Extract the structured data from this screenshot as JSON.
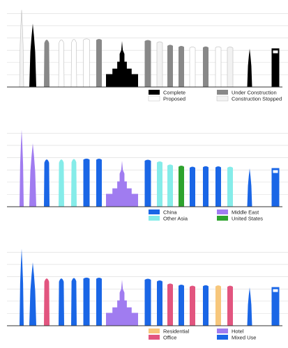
{
  "colors": {
    "complete": "#000000",
    "under_construction": "#888888",
    "proposed": "#ffffff",
    "construction_stopped": "#f2f2f2",
    "china": "#1a66e6",
    "other_asia": "#85ece9",
    "middle_east": "#a07cf0",
    "united_states": "#2ea32e",
    "residential": "#f7c77c",
    "office": "#e2557f",
    "hotel": "#a07cf0",
    "mixed_use": "#1a66e6",
    "grid": "#d9d9d9",
    "axis": "#333333"
  },
  "chart_data": [
    {
      "type": "bar",
      "title": "",
      "grouping": "status",
      "legend_placement": "bottom-right",
      "grid": true,
      "legend": [
        {
          "key": "complete",
          "label": "Complete"
        },
        {
          "key": "under_construction",
          "label": "Under Construction"
        },
        {
          "key": "proposed",
          "label": "Proposed"
        },
        {
          "key": "construction_stopped",
          "label": "Construction Stopped"
        }
      ],
      "buildings": [
        {
          "rank": 1,
          "height": 1007,
          "category": "construction_stopped",
          "shape": "spire"
        },
        {
          "rank": 2,
          "height": 828,
          "category": "complete",
          "shape": "spire"
        },
        {
          "rank": 3,
          "height": 640,
          "category": "under_construction",
          "shape": "taper"
        },
        {
          "rank": 4,
          "height": 640,
          "category": "proposed",
          "shape": "taper"
        },
        {
          "rank": 5,
          "height": 646,
          "category": "proposed",
          "shape": "taper"
        },
        {
          "rank": 6,
          "height": 634,
          "category": "proposed",
          "shape": "slab"
        },
        {
          "rank": 7,
          "height": 632,
          "category": "under_construction",
          "shape": "slab"
        },
        {
          "rank": 8,
          "height": 601,
          "category": "complete",
          "shape": "clock"
        },
        {
          "rank": 9,
          "height": 619,
          "category": "under_construction",
          "shape": "slab"
        },
        {
          "rank": 10,
          "height": 597,
          "category": "construction_stopped",
          "shape": "slab"
        },
        {
          "rank": 11,
          "height": 556,
          "category": "under_construction",
          "shape": "slab"
        },
        {
          "rank": 12,
          "height": 541,
          "category": "under_construction",
          "shape": "slab"
        },
        {
          "rank": 13,
          "height": 528,
          "category": "proposed",
          "shape": "slab"
        },
        {
          "rank": 14,
          "height": 535,
          "category": "under_construction",
          "shape": "slab"
        },
        {
          "rank": 15,
          "height": 532,
          "category": "proposed",
          "shape": "slab"
        },
        {
          "rank": 16,
          "height": 528,
          "category": "construction_stopped",
          "shape": "slab"
        },
        {
          "rank": 17,
          "height": 500,
          "category": "complete",
          "shape": "spire"
        },
        {
          "rank": 18,
          "height": 505,
          "category": "complete",
          "shape": "hole"
        }
      ]
    },
    {
      "type": "bar",
      "title": "",
      "grouping": "region",
      "legend_placement": "bottom-right",
      "grid": true,
      "legend": [
        {
          "key": "china",
          "label": "China"
        },
        {
          "key": "middle_east",
          "label": "Middle East"
        },
        {
          "key": "other_asia",
          "label": "Other Asia"
        },
        {
          "key": "united_states",
          "label": "United States"
        }
      ],
      "buildings": [
        {
          "rank": 1,
          "height": 1007,
          "category": "middle_east",
          "shape": "spire"
        },
        {
          "rank": 2,
          "height": 828,
          "category": "middle_east",
          "shape": "spire"
        },
        {
          "rank": 3,
          "height": 640,
          "category": "china",
          "shape": "taper"
        },
        {
          "rank": 4,
          "height": 640,
          "category": "other_asia",
          "shape": "taper"
        },
        {
          "rank": 5,
          "height": 646,
          "category": "other_asia",
          "shape": "taper"
        },
        {
          "rank": 6,
          "height": 634,
          "category": "china",
          "shape": "slab"
        },
        {
          "rank": 7,
          "height": 632,
          "category": "china",
          "shape": "slab"
        },
        {
          "rank": 8,
          "height": 601,
          "category": "middle_east",
          "shape": "clock"
        },
        {
          "rank": 9,
          "height": 619,
          "category": "china",
          "shape": "slab"
        },
        {
          "rank": 10,
          "height": 597,
          "category": "other_asia",
          "shape": "slab"
        },
        {
          "rank": 11,
          "height": 556,
          "category": "other_asia",
          "shape": "slab"
        },
        {
          "rank": 12,
          "height": 541,
          "category": "united_states",
          "shape": "slab"
        },
        {
          "rank": 13,
          "height": 528,
          "category": "china",
          "shape": "slab"
        },
        {
          "rank": 14,
          "height": 535,
          "category": "china",
          "shape": "slab"
        },
        {
          "rank": 15,
          "height": 532,
          "category": "china",
          "shape": "slab"
        },
        {
          "rank": 16,
          "height": 528,
          "category": "other_asia",
          "shape": "slab"
        },
        {
          "rank": 17,
          "height": 500,
          "category": "china",
          "shape": "spire"
        },
        {
          "rank": 18,
          "height": 505,
          "category": "china",
          "shape": "hole"
        }
      ]
    },
    {
      "type": "bar",
      "title": "",
      "grouping": "function",
      "legend_placement": "bottom-right",
      "grid": true,
      "legend": [
        {
          "key": "residential",
          "label": "Residential"
        },
        {
          "key": "hotel",
          "label": "Hotel"
        },
        {
          "key": "office",
          "label": "Office"
        },
        {
          "key": "mixed_use",
          "label": "Mixed Use"
        }
      ],
      "buildings": [
        {
          "rank": 1,
          "height": 1007,
          "category": "mixed_use",
          "shape": "spire"
        },
        {
          "rank": 2,
          "height": 828,
          "category": "mixed_use",
          "shape": "spire"
        },
        {
          "rank": 3,
          "height": 640,
          "category": "office",
          "shape": "taper"
        },
        {
          "rank": 4,
          "height": 640,
          "category": "mixed_use",
          "shape": "taper"
        },
        {
          "rank": 5,
          "height": 646,
          "category": "mixed_use",
          "shape": "taper"
        },
        {
          "rank": 6,
          "height": 634,
          "category": "mixed_use",
          "shape": "slab"
        },
        {
          "rank": 7,
          "height": 632,
          "category": "mixed_use",
          "shape": "slab"
        },
        {
          "rank": 8,
          "height": 601,
          "category": "hotel",
          "shape": "clock"
        },
        {
          "rank": 9,
          "height": 619,
          "category": "mixed_use",
          "shape": "slab"
        },
        {
          "rank": 10,
          "height": 597,
          "category": "mixed_use",
          "shape": "slab"
        },
        {
          "rank": 11,
          "height": 556,
          "category": "office",
          "shape": "slab"
        },
        {
          "rank": 12,
          "height": 541,
          "category": "mixed_use",
          "shape": "slab"
        },
        {
          "rank": 13,
          "height": 528,
          "category": "office",
          "shape": "slab"
        },
        {
          "rank": 14,
          "height": 535,
          "category": "mixed_use",
          "shape": "slab"
        },
        {
          "rank": 15,
          "height": 532,
          "category": "residential",
          "shape": "slab"
        },
        {
          "rank": 16,
          "height": 528,
          "category": "office",
          "shape": "slab"
        },
        {
          "rank": 17,
          "height": 500,
          "category": "mixed_use",
          "shape": "spire"
        },
        {
          "rank": 18,
          "height": 505,
          "category": "mixed_use",
          "shape": "hole"
        }
      ]
    }
  ]
}
